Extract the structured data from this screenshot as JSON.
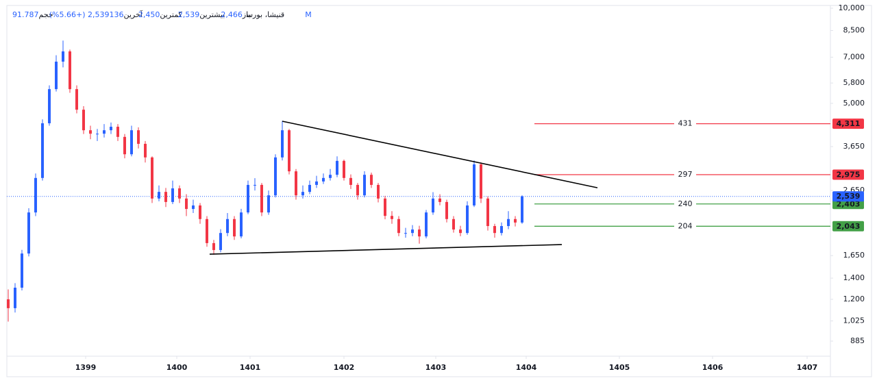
{
  "chart_data": {
    "type": "candlestick",
    "symbol": "قنیشا، بورس",
    "header": [
      {
        "label": "باز",
        "value": "2,466"
      },
      {
        "label": "بیشترین",
        "value": "2,539"
      },
      {
        "label": "کمترین",
        "value": "2,450"
      },
      {
        "label": "آخرین",
        "value": "2,539"
      },
      {
        "label": "",
        "value": "136 (+5.66%)"
      },
      {
        "label": "حجم",
        "value": "91.787M"
      }
    ],
    "log_scale": true,
    "up_color": "#2962ff",
    "down_color": "#f23645",
    "open": [
      1200,
      1125,
      1306,
      1675,
      2259,
      2904,
      4325,
      5546,
      6776,
      7300,
      5546,
      4775,
      4111,
      4009,
      4009,
      4111,
      4217,
      3917,
      3451,
      4111,
      3724,
      3373,
      2500,
      2624,
      2438,
      2692,
      2500,
      2317,
      2377,
      2153,
      1807,
      1718,
      1945,
      2153,
      1897,
      2259,
      2761,
      2761,
      2259,
      2559,
      3373,
      4111,
      3048,
      2559,
      2624,
      2761,
      2831,
      2904,
      2972,
      3289,
      2904,
      2761,
      2559,
      2972,
      2761,
      2500,
      2203,
      2153,
      1945,
      1945,
      1995,
      1897,
      2259,
      2500,
      2438,
      2153,
      1995,
      1945,
      2377,
      3206,
      2500,
      2046,
      1945,
      2046,
      2153,
      2099
    ],
    "high": [
      1290,
      1350,
      1720,
      2330,
      3000,
      4450,
      5700,
      7100,
      7900,
      7400,
      5700,
      4900,
      4250,
      4150,
      4300,
      4350,
      4300,
      4000,
      4250,
      4200,
      3800,
      3400,
      2750,
      2700,
      2850,
      2750,
      2580,
      2480,
      2420,
      2200,
      1850,
      2000,
      2250,
      2200,
      2320,
      2850,
      2900,
      2800,
      2650,
      3450,
      4400,
      4150,
      3100,
      2750,
      2850,
      2950,
      3000,
      3100,
      3400,
      3320,
      2980,
      2800,
      3050,
      3020,
      2800,
      2550,
      2280,
      2200,
      2020,
      2060,
      2050,
      2300,
      2620,
      2580,
      2480,
      2200,
      2050,
      2450,
      3300,
      3250,
      2540,
      2080,
      2100,
      2280,
      2200,
      2560
    ],
    "low": [
      1020,
      1090,
      1280,
      1640,
      2200,
      2850,
      4250,
      5450,
      6500,
      5400,
      4650,
      4000,
      3850,
      3800,
      3900,
      4000,
      3800,
      3350,
      3400,
      3600,
      3250,
      2420,
      2450,
      2350,
      2400,
      2420,
      2200,
      2250,
      2080,
      1760,
      1660,
      1690,
      1900,
      1850,
      1870,
      2230,
      2650,
      2200,
      2220,
      2520,
      3300,
      2980,
      2480,
      2500,
      2580,
      2700,
      2780,
      2850,
      2920,
      2850,
      2680,
      2480,
      2520,
      2700,
      2430,
      2150,
      2080,
      1900,
      1880,
      1900,
      1800,
      1870,
      2220,
      2380,
      2100,
      1950,
      1900,
      1920,
      2350,
      2420,
      1980,
      1880,
      1910,
      2000,
      2040,
      2080
    ],
    "close": [
      1125,
      1306,
      1675,
      2259,
      2904,
      4325,
      5546,
      6776,
      7300,
      5546,
      4775,
      4111,
      4009,
      4009,
      4111,
      4217,
      3917,
      3451,
      4111,
      3724,
      3373,
      2500,
      2624,
      2438,
      2692,
      2500,
      2317,
      2377,
      2153,
      1807,
      1718,
      1945,
      2153,
      1897,
      2259,
      2761,
      2761,
      2259,
      2559,
      3373,
      4111,
      3048,
      2559,
      2624,
      2761,
      2831,
      2904,
      2972,
      3289,
      2904,
      2761,
      2559,
      2972,
      2761,
      2500,
      2203,
      2153,
      1945,
      1945,
      1995,
      1897,
      2259,
      2500,
      2438,
      2153,
      1995,
      1945,
      2377,
      3206,
      2500,
      2046,
      1945,
      2046,
      2153,
      2099,
      2539
    ],
    "xlim": [
      -0.2,
      120
    ],
    "xticks": [
      {
        "value": 11.3,
        "label": "1399"
      },
      {
        "value": 24.6,
        "label": "1400"
      },
      {
        "value": 35.3,
        "label": "1401"
      },
      {
        "value": 49,
        "label": "1402"
      },
      {
        "value": 62.4,
        "label": "1403"
      },
      {
        "value": 75.6,
        "label": "1404"
      },
      {
        "value": 89.2,
        "label": "1405"
      },
      {
        "value": 102.8,
        "label": "1406"
      },
      {
        "value": 116.6,
        "label": "1407"
      }
    ],
    "ylim": [
      793,
      10200
    ],
    "yticks": [
      {
        "value": 10000,
        "label": "10,000"
      },
      {
        "value": 8500,
        "label": "8,500"
      },
      {
        "value": 7000,
        "label": "7,000"
      },
      {
        "value": 5800,
        "label": "5,800"
      },
      {
        "value": 5000,
        "label": "5,000"
      },
      {
        "value": 3650,
        "label": "3,650"
      },
      {
        "value": 2650,
        "label": "2,650"
      },
      {
        "value": 1650,
        "label": "1,650"
      },
      {
        "value": 1400,
        "label": "1,400"
      },
      {
        "value": 1200,
        "label": "1,200"
      },
      {
        "value": 1025,
        "label": "1,025"
      },
      885
    ],
    "trendlines": [
      {
        "x": [
          40,
          86
        ],
        "y": [
          4390,
          2704
        ]
      },
      {
        "x": [
          29.4,
          80.8
        ],
        "y": [
          1667,
          1788
        ]
      }
    ],
    "levels": [
      {
        "value": 4311,
        "label": "4,311",
        "tag": 431,
        "color": "#f23645"
      },
      {
        "value": 2975,
        "label": "2,975",
        "tag": 297,
        "color": "#f23645"
      },
      {
        "value": 2403,
        "label": "2,403",
        "tag": 240,
        "color": "#43a047"
      },
      {
        "value": 2043,
        "label": "2,043",
        "tag": 204,
        "color": "#43a047"
      }
    ],
    "last": {
      "value": 2539,
      "label": "2,539",
      "color": "#2962ff"
    }
  }
}
